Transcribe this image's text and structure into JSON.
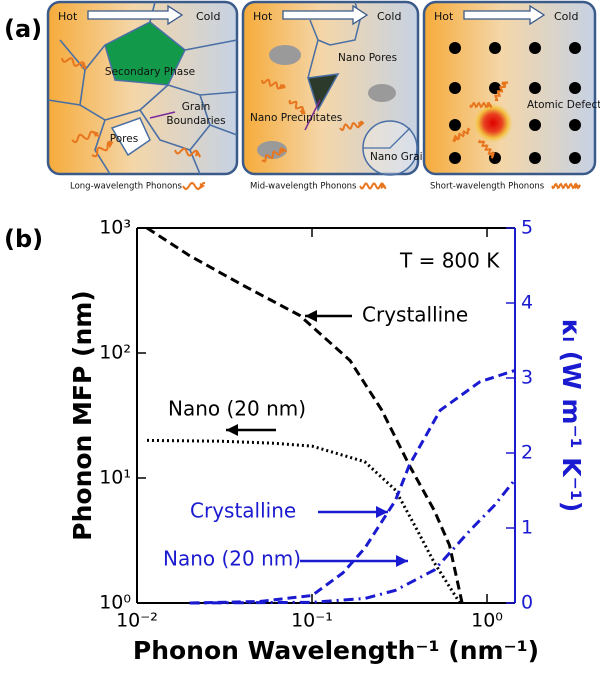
{
  "panel_a": {
    "label": "(a)",
    "boxes": [
      {
        "hot": "Hot",
        "cold": "Cold",
        "labels": [
          "Secondary Phase",
          "Grain",
          "Boundaries",
          "Pores"
        ],
        "caption": "Long-wavelength Phonons"
      },
      {
        "hot": "Hot",
        "cold": "Cold",
        "labels": [
          "Nano Pores",
          "Nano Precipitates",
          "Nano Grains"
        ],
        "caption": "Mid-wavelength Phonons"
      },
      {
        "hot": "Hot",
        "cold": "Cold",
        "labels": [
          "Atomic Defect"
        ],
        "caption": "Short-wavelength Phonons"
      }
    ]
  },
  "chart_data": {
    "type": "line",
    "panel_label": "(b)",
    "annotation": "T = 800 K",
    "x_label": "Phonon Wavelength⁻¹ (nm⁻¹)",
    "y_label": "Phonon MFP (nm)",
    "y2_label": "κₗ (W m⁻¹ K⁻¹)",
    "xscale": "log",
    "yscale": "log",
    "xlim": [
      0.01,
      1.445
    ],
    "ylim": [
      1,
      1000
    ],
    "y2lim": [
      0,
      5
    ],
    "xticks": [
      {
        "value": 0.01,
        "label": "10⁻²"
      },
      {
        "value": 0.1,
        "label": "10⁻¹"
      },
      {
        "value": 1,
        "label": "10⁰"
      }
    ],
    "yticks": [
      {
        "value": 1,
        "label": "10⁰"
      },
      {
        "value": 10,
        "label": "10¹"
      },
      {
        "value": 100,
        "label": "10²"
      },
      {
        "value": 1000,
        "label": "10³"
      }
    ],
    "y2ticks": [
      0,
      1,
      2,
      3,
      4,
      5
    ],
    "y2color": "#1a1ad0",
    "series": [
      {
        "name": "Crystalline",
        "color": "#000000",
        "style": "dashed",
        "x": [
          0.0114,
          0.02,
          0.04,
          0.085,
          0.165,
          0.25,
          0.36,
          0.5,
          0.61,
          0.72
        ],
        "values": [
          1000,
          600,
          350,
          200,
          87,
          35,
          12.6,
          5.5,
          2.9,
          1
        ]
      },
      {
        "name": "Nano (20 nm)",
        "color": "#000000",
        "style": "dotted",
        "x": [
          0.0114,
          0.03,
          0.06,
          0.1,
          0.2,
          0.3,
          0.4,
          0.5,
          0.6,
          0.7
        ],
        "values": [
          20,
          19.7,
          19,
          18,
          13.5,
          8,
          3.8,
          2.1,
          1.4,
          1
        ]
      },
      {
        "name": "Crystalline",
        "color": "#1a1ad0",
        "style": "dashed",
        "axis": "y2",
        "x": [
          0.02,
          0.05,
          0.1,
          0.15,
          0.2,
          0.3,
          0.36,
          0.54,
          0.91,
          1.44
        ],
        "values": [
          0,
          0.02,
          0.1,
          0.4,
          0.73,
          1.37,
          1.84,
          2.57,
          2.95,
          3.1
        ]
      },
      {
        "name": "Nano (20 nm)",
        "color": "#1a1ad0",
        "style": "dashdot",
        "axis": "y2",
        "x": [
          0.02,
          0.1,
          0.2,
          0.3,
          0.5,
          0.8,
          1.1,
          1.44
        ],
        "values": [
          0,
          0.01,
          0.06,
          0.17,
          0.44,
          0.97,
          1.3,
          1.64
        ]
      }
    ]
  }
}
